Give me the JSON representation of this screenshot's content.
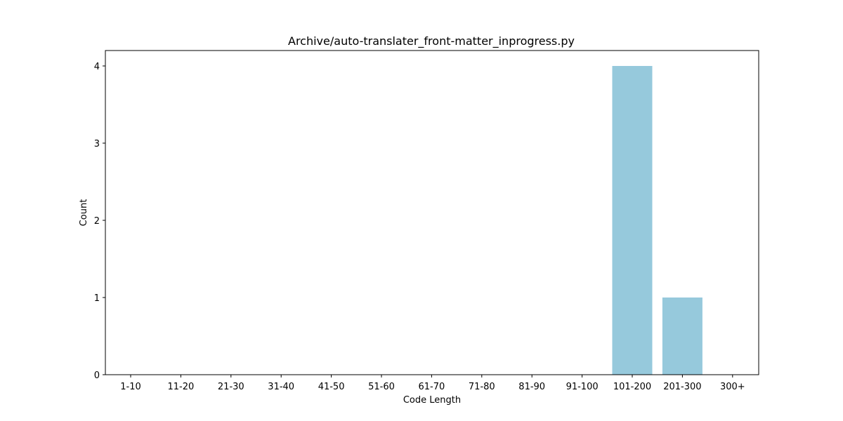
{
  "chart_data": {
    "type": "bar",
    "title": "Archive/auto-translater_front-matter_inprogress.py",
    "xlabel": "Code Length",
    "ylabel": "Count",
    "categories": [
      "1-10",
      "11-20",
      "21-30",
      "31-40",
      "41-50",
      "51-60",
      "61-70",
      "71-80",
      "81-90",
      "91-100",
      "101-200",
      "201-300",
      "300+"
    ],
    "values": [
      0,
      0,
      0,
      0,
      0,
      0,
      0,
      0,
      0,
      0,
      4,
      1,
      0
    ],
    "ylim": [
      0,
      4.2
    ],
    "yticks": [
      0,
      1,
      2,
      3,
      4
    ],
    "grid": false,
    "bar_color": "#96c9dc"
  }
}
